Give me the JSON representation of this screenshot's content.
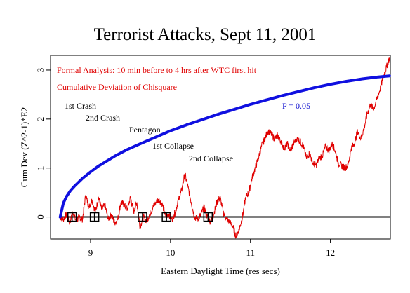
{
  "colors": {
    "deviation_line": "#e00000",
    "significance_curve": "#1010e0",
    "baseline": "#000000",
    "annotation_red": "#e00000",
    "annotation_blue": "#1010d0"
  },
  "chart_data": {
    "type": "line",
    "title": "Terrorist Attacks, Sept 11, 2001",
    "xlabel": "Eastern Daylight Time (res secs)",
    "ylabel": "Cum Dev (Z^2-1)*E2",
    "xlim": [
      8.5,
      12.75
    ],
    "ylim": [
      -0.45,
      3.3
    ],
    "x_ticks": [
      "9",
      "10",
      "11",
      "12"
    ],
    "y_ticks": [
      "0",
      "1",
      "2",
      "3"
    ],
    "grid": false,
    "legend": "none",
    "annotations": {
      "formal_analysis": "Formal Analysis: 10 min before to 4 hrs after WTC first hit",
      "cumulative_deviation": "Cumulative Deviation of Chisquare",
      "p_value": "P = 0.05"
    },
    "events": [
      {
        "label": "1st Crash",
        "x": 8.77
      },
      {
        "label": "2nd Crash",
        "x": 9.05
      },
      {
        "label": "Pentagon",
        "x": 9.65
      },
      {
        "label": "1st Collapse",
        "x": 9.95
      },
      {
        "label": "2nd Collapse",
        "x": 10.47
      }
    ],
    "series": [
      {
        "style": "jagged",
        "x": [
          8.62,
          8.66,
          8.7,
          8.74,
          8.78,
          8.82,
          8.86,
          8.9,
          8.94,
          8.98,
          9.02,
          9.06,
          9.1,
          9.14,
          9.18,
          9.22,
          9.26,
          9.3,
          9.34,
          9.38,
          9.42,
          9.46,
          9.5,
          9.54,
          9.58,
          9.62,
          9.66,
          9.7,
          9.74,
          9.78,
          9.82,
          9.86,
          9.9,
          9.94,
          9.98,
          10.02,
          10.06,
          10.1,
          10.14,
          10.18,
          10.22,
          10.26,
          10.3,
          10.34,
          10.38,
          10.42,
          10.46,
          10.5,
          10.54,
          10.58,
          10.62,
          10.66,
          10.7,
          10.74,
          10.78,
          10.82,
          10.86,
          10.9,
          10.94,
          10.98,
          11.02,
          11.06,
          11.1,
          11.14,
          11.18,
          11.22,
          11.26,
          11.3,
          11.34,
          11.38,
          11.42,
          11.46,
          11.5,
          11.54,
          11.58,
          11.62,
          11.66,
          11.7,
          11.74,
          11.78,
          11.82,
          11.86,
          11.9,
          11.94,
          11.98,
          12.02,
          12.06,
          12.1,
          12.14,
          12.18,
          12.22,
          12.26,
          12.3,
          12.34,
          12.38,
          12.42,
          12.46,
          12.5,
          12.54,
          12.58,
          12.62,
          12.66,
          12.7,
          12.74
        ],
        "values": [
          0.0,
          -0.05,
          0.05,
          -0.12,
          0.1,
          -0.08,
          0.0,
          -0.05,
          0.45,
          0.2,
          0.35,
          0.1,
          0.4,
          0.15,
          0.25,
          -0.05,
          0.05,
          -0.12,
          -0.05,
          0.3,
          0.25,
          0.15,
          0.4,
          0.1,
          0.3,
          -0.2,
          0.0,
          -0.08,
          0.05,
          0.2,
          0.3,
          0.35,
          0.25,
          0.0,
          0.05,
          -0.05,
          0.1,
          0.35,
          0.55,
          0.88,
          0.6,
          0.3,
          0.0,
          -0.05,
          0.05,
          0.2,
          0.0,
          -0.1,
          0.05,
          0.3,
          0.4,
          0.1,
          -0.05,
          -0.1,
          -0.2,
          -0.4,
          -0.25,
          0.0,
          0.4,
          0.5,
          0.8,
          1.0,
          1.2,
          1.45,
          1.6,
          1.75,
          1.7,
          1.6,
          1.65,
          1.55,
          1.4,
          1.5,
          1.35,
          1.5,
          1.6,
          1.55,
          1.45,
          1.2,
          1.3,
          1.1,
          1.05,
          1.2,
          1.25,
          1.45,
          1.35,
          1.5,
          1.35,
          1.1,
          1.05,
          1.0,
          1.05,
          1.4,
          1.5,
          1.75,
          1.6,
          1.8,
          2.1,
          2.3,
          2.2,
          2.4,
          2.6,
          2.85,
          3.05,
          3.25
        ]
      },
      {
        "style": "smooth",
        "x": [
          8.62,
          8.66,
          8.7,
          8.75,
          8.8,
          8.9,
          9.0,
          9.1,
          9.2,
          9.3,
          9.45,
          9.6,
          9.8,
          10.0,
          10.2,
          10.4,
          10.6,
          10.8,
          11.0,
          11.2,
          11.4,
          11.6,
          11.8,
          12.0,
          12.2,
          12.4,
          12.6,
          12.74
        ],
        "values": [
          0.0,
          0.28,
          0.42,
          0.54,
          0.63,
          0.79,
          0.92,
          1.04,
          1.14,
          1.24,
          1.37,
          1.48,
          1.62,
          1.76,
          1.88,
          1.99,
          2.1,
          2.2,
          2.3,
          2.39,
          2.48,
          2.56,
          2.64,
          2.71,
          2.77,
          2.82,
          2.86,
          2.88
        ]
      }
    ]
  }
}
